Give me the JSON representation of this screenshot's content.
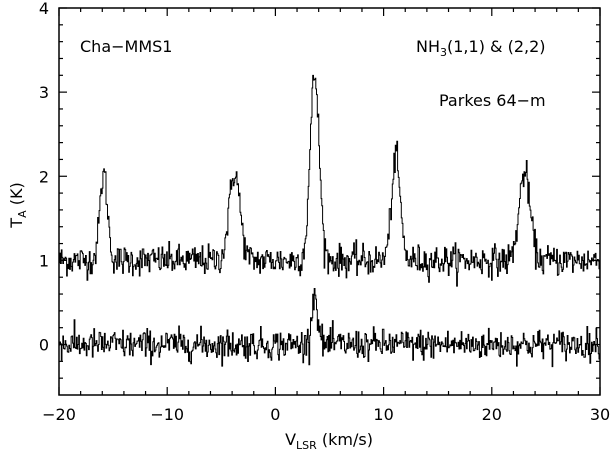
{
  "chart_data": {
    "type": "line",
    "xlabel_main": "V",
    "xlabel_sub": "LSR",
    "xlabel_unit": " (km/s)",
    "ylabel_main": "T",
    "ylabel_sub": "A",
    "ylabel_unit": " (K)",
    "xlim": [
      -20,
      30
    ],
    "ylim": [
      -0.6,
      4
    ],
    "x_ticks": [
      -20,
      -10,
      0,
      10,
      20,
      30
    ],
    "x_tick_labels": [
      "−20",
      "−10",
      "0",
      "10",
      "20",
      "30"
    ],
    "y_ticks": [
      0,
      1,
      2,
      3,
      4
    ],
    "y_tick_labels": [
      "0",
      "1",
      "2",
      "3",
      "4"
    ],
    "annotations": {
      "source": "Cha−MMS1",
      "line_main": "NH",
      "line_sub": "3",
      "line_rest": "(1,1) & (2,2)",
      "telescope": "Parkes 64−m"
    },
    "series": [
      {
        "baseline": 1.0,
        "noise": 0.09,
        "peaks": [
          {
            "x": -15.9,
            "height": 1.03,
            "width": 0.35
          },
          {
            "x": -3.8,
            "height": 1.05,
            "width": 0.5
          },
          {
            "x": 3.6,
            "height": 2.2,
            "width": 0.42
          },
          {
            "x": 11.1,
            "height": 1.22,
            "width": 0.4
          },
          {
            "x": 23.0,
            "height": 1.05,
            "width": 0.5
          }
        ]
      },
      {
        "baseline": 0.0,
        "noise": 0.09,
        "peaks": [
          {
            "x": 3.6,
            "height": 0.6,
            "width": 0.28
          }
        ]
      }
    ],
    "grid": false,
    "legend": "none"
  }
}
